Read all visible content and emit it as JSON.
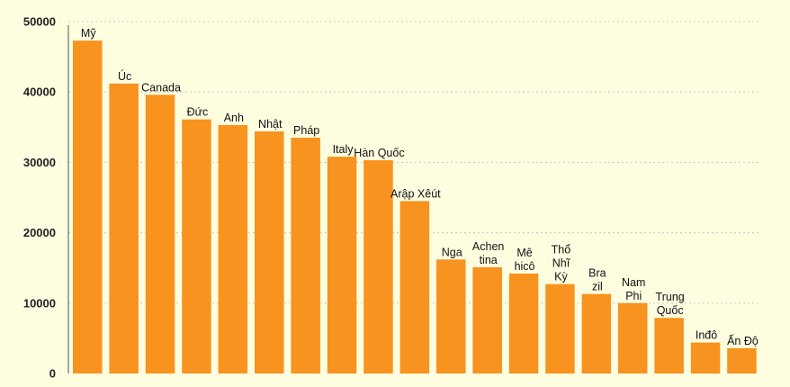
{
  "chart_data": {
    "type": "bar",
    "categories": [
      "Mỹ",
      "Úc",
      "Canada",
      "Đức",
      "Anh",
      "Nhật",
      "Pháp",
      "Italy",
      "Hàn Quốc",
      "Arập Xêút",
      "Nga",
      "Achen tina",
      "Mê hicô",
      "Thổ Nhĩ Kỳ",
      "Bra zil",
      "Nam Phi",
      "Trung Quốc",
      "Inđô",
      "Ấn Độ"
    ],
    "category_label_lines": [
      [
        "Mỹ"
      ],
      [
        "Úc"
      ],
      [
        "Canada"
      ],
      [
        "Đức"
      ],
      [
        "Anh"
      ],
      [
        "Nhật"
      ],
      [
        "Pháp"
      ],
      [
        "Italy"
      ],
      [
        "Hàn Quốc"
      ],
      [
        "Arập Xêút"
      ],
      [
        "Nga"
      ],
      [
        "Achen",
        "tina"
      ],
      [
        "Mê",
        "hicô"
      ],
      [
        "Thổ",
        "Nhĩ",
        "Kỳ"
      ],
      [
        "Bra",
        "zil"
      ],
      [
        "Nam",
        "Phi"
      ],
      [
        "Trung",
        "Quốc"
      ],
      [
        "Inđô"
      ],
      [
        "Ấn Độ"
      ]
    ],
    "values": [
      47300,
      41200,
      39600,
      36100,
      35300,
      34400,
      33500,
      30800,
      30300,
      24500,
      16200,
      15100,
      14200,
      12700,
      11300,
      10000,
      7900,
      4400,
      3600
    ],
    "yticks": [
      "0",
      "10000",
      "20000",
      "30000",
      "40000",
      "50000"
    ],
    "ylim": [
      0,
      50000
    ],
    "grid": true,
    "bar_color": "#f7931e",
    "grid_color": "#c8c8c8",
    "background": "#fffde0",
    "title": "",
    "xlabel": "",
    "ylabel": ""
  }
}
